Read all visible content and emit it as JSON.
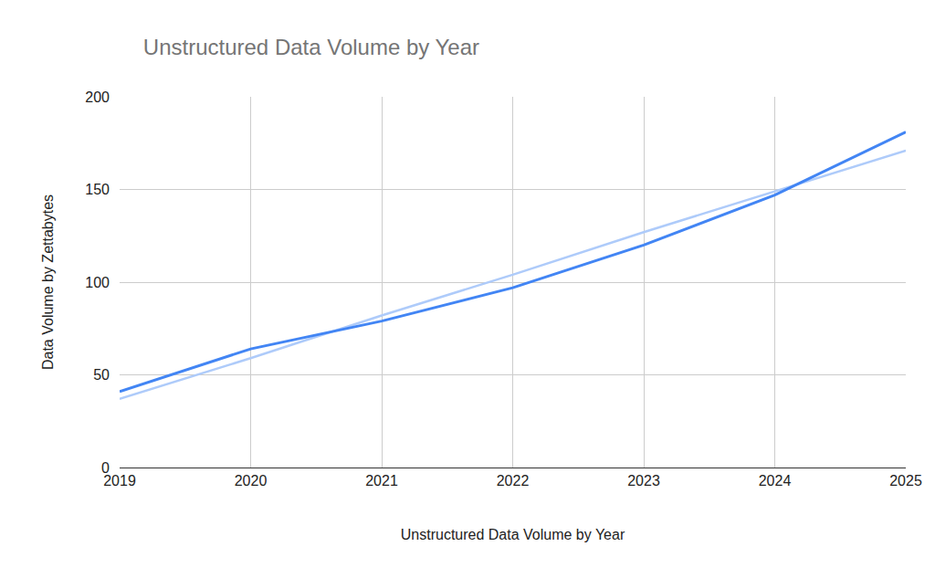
{
  "chart_data": {
    "type": "line",
    "title": "Unstructured Data Volume by Year",
    "x_label": "Unstructured Data Volume by Year",
    "y_label": "Data Volume by Zettabytes",
    "x": [
      2019,
      2020,
      2021,
      2022,
      2023,
      2024,
      2025
    ],
    "series": [
      {
        "color": "#aecbfa",
        "values": [
          37,
          59,
          82,
          104,
          127,
          149,
          171
        ]
      },
      {
        "color": "#4285f4",
        "values": [
          41,
          64,
          79,
          97,
          120,
          147,
          181
        ]
      }
    ],
    "xlim": [
      2019,
      2025
    ],
    "xticks": [
      2019,
      2020,
      2021,
      2022,
      2023,
      2024,
      2025
    ],
    "ylim": [
      0,
      200
    ],
    "yticks": [
      0,
      50,
      100,
      150,
      200
    ],
    "grid": true
  }
}
